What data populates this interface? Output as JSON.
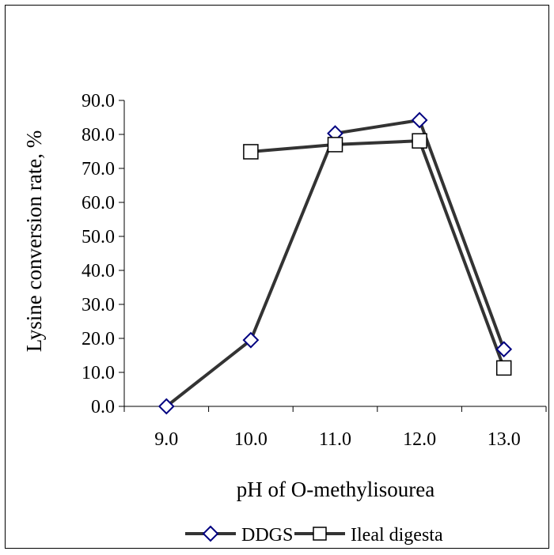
{
  "chart_data": {
    "type": "line",
    "title": "",
    "xlabel": "pH of O-methylisourea",
    "ylabel": "Lysine conversion rate, %",
    "x": [
      9.0,
      10.0,
      11.0,
      12.0,
      13.0
    ],
    "x_tick_labels": [
      "9.0",
      "10.0",
      "11.0",
      "12.0",
      "13.0"
    ],
    "y_tick_labels": [
      "0.0",
      "10.0",
      "20.0",
      "30.0",
      "40.0",
      "50.0",
      "60.0",
      "70.0",
      "80.0",
      "90.0"
    ],
    "ylim": [
      0,
      90
    ],
    "grid": false,
    "legend_position": "bottom",
    "series": [
      {
        "name": "DDGS",
        "marker": "diamond",
        "color": "#333333",
        "marker_color": "#000080",
        "values": [
          0.0,
          19.5,
          80.3,
          84.2,
          16.8
        ]
      },
      {
        "name": "Ileal digesta",
        "marker": "square",
        "color": "#333333",
        "marker_color": "#000000",
        "values": [
          null,
          74.9,
          77.0,
          78.1,
          11.3
        ]
      }
    ]
  }
}
